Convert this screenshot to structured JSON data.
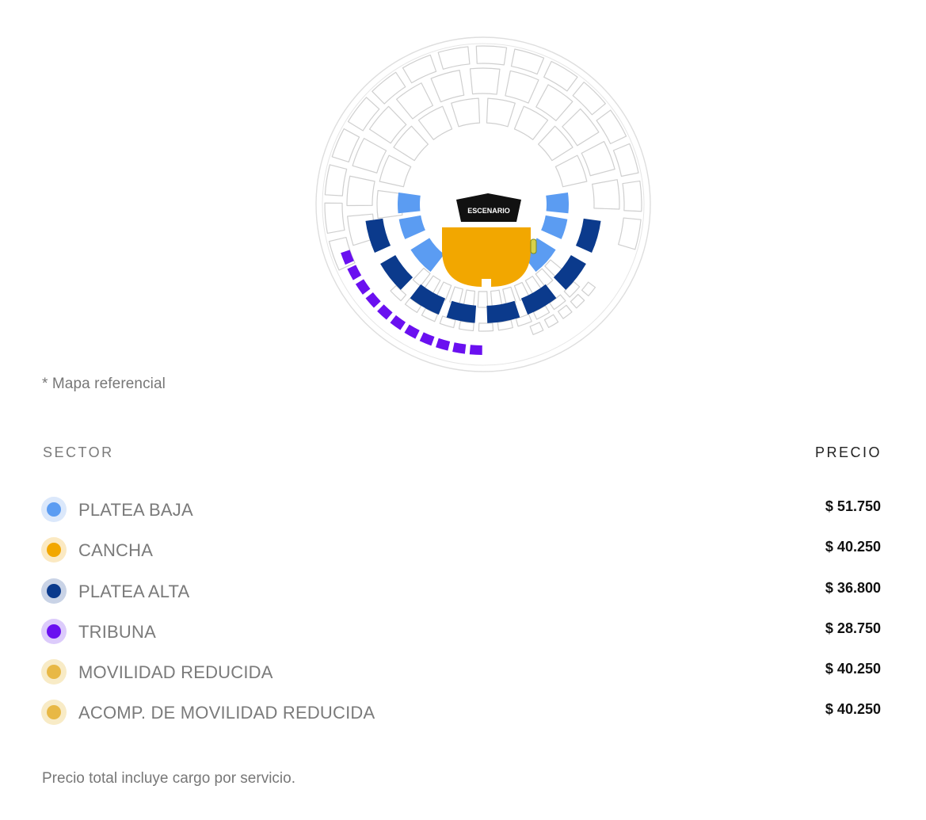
{
  "map": {
    "stage_label": "ESCENARIO",
    "note": "* Mapa referencial",
    "colors": {
      "platea_baja": "#5b9cf2",
      "cancha": "#f2a700",
      "platea_alta": "#0b3a8c",
      "tribuna": "#6a10f0",
      "movilidad": "#e8b845",
      "stage": "#111111",
      "unavailable_stroke": "#cfcfcf"
    }
  },
  "table": {
    "sector_header": "SECTOR",
    "price_header": "PRECIO",
    "rows": [
      {
        "name": "PLATEA BAJA",
        "price": "$ 51.750",
        "color": "#5b9cf2",
        "halo": "#dbe8fb"
      },
      {
        "name": "CANCHA",
        "price": "$ 40.250",
        "color": "#f2a700",
        "halo": "#fbe9c2"
      },
      {
        "name": "PLATEA ALTA",
        "price": "$ 36.800",
        "color": "#0b3a8c",
        "halo": "#c9d3e6"
      },
      {
        "name": "TRIBUNA",
        "price": "$ 28.750",
        "color": "#6a10f0",
        "halo": "#dccbfb"
      },
      {
        "name": "MOVILIDAD REDUCIDA",
        "price": "$ 40.250",
        "color": "#e8b845",
        "halo": "#f8ebc6"
      },
      {
        "name": "ACOMP. DE MOVILIDAD REDUCIDA",
        "price": "$ 40.250",
        "color": "#e8b845",
        "halo": "#f8ebc6"
      }
    ]
  },
  "footer": "Precio total incluye cargo por servicio."
}
